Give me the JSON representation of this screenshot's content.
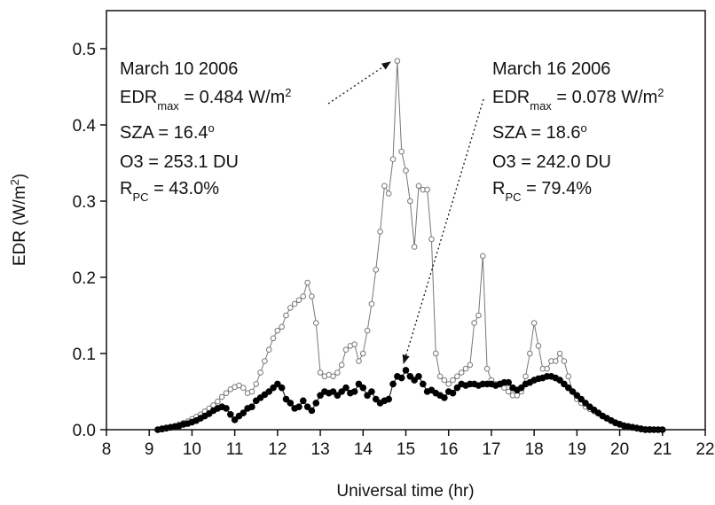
{
  "chart_data": {
    "type": "line",
    "xlabel": "Universal time (hr)",
    "ylabel": [
      {
        "text": "EDR (W/m"
      },
      {
        "text": "2",
        "shift": "sup"
      },
      {
        "text": ")"
      }
    ],
    "xlim": [
      8,
      22
    ],
    "ylim": [
      0,
      0.55
    ],
    "xticks": [
      8,
      9,
      10,
      11,
      12,
      13,
      14,
      15,
      16,
      17,
      18,
      19,
      20,
      21,
      22
    ],
    "yticks": [
      {
        "value": 0,
        "label": "0.0"
      },
      0.1,
      0.2,
      0.3,
      0.4,
      0.5
    ],
    "x": [
      9.2,
      9.3,
      9.4,
      9.5,
      9.6,
      9.7,
      9.8,
      9.9,
      10.0,
      10.1,
      10.2,
      10.3,
      10.4,
      10.5,
      10.6,
      10.7,
      10.8,
      10.9,
      11.0,
      11.1,
      11.2,
      11.3,
      11.4,
      11.5,
      11.6,
      11.7,
      11.8,
      11.9,
      12.0,
      12.1,
      12.2,
      12.3,
      12.4,
      12.5,
      12.6,
      12.7,
      12.8,
      12.9,
      13.0,
      13.1,
      13.2,
      13.3,
      13.4,
      13.5,
      13.6,
      13.7,
      13.8,
      13.9,
      14.0,
      14.1,
      14.2,
      14.3,
      14.4,
      14.5,
      14.6,
      14.7,
      14.8,
      14.9,
      15.0,
      15.1,
      15.2,
      15.3,
      15.4,
      15.5,
      15.6,
      15.7,
      15.8,
      15.9,
      16.0,
      16.1,
      16.2,
      16.3,
      16.4,
      16.5,
      16.6,
      16.7,
      16.8,
      16.9,
      17.0,
      17.1,
      17.2,
      17.3,
      17.4,
      17.5,
      17.6,
      17.7,
      17.8,
      17.9,
      18.0,
      18.1,
      18.2,
      18.3,
      18.4,
      18.5,
      18.6,
      18.7,
      18.8,
      18.9,
      19.0,
      19.1,
      19.2,
      19.3,
      19.4,
      19.5,
      19.6,
      19.7,
      19.8,
      19.9,
      20.0,
      20.1,
      20.2,
      20.3,
      20.4,
      20.5,
      20.6,
      20.7,
      20.8,
      20.9,
      21.0
    ],
    "series": [
      {
        "marker": "open",
        "color": "#777777",
        "values": [
          0,
          0.002,
          0.003,
          0.004,
          0.005,
          0.007,
          0.009,
          0.011,
          0.014,
          0.017,
          0.02,
          0.024,
          0.028,
          0.032,
          0.037,
          0.043,
          0.048,
          0.053,
          0.056,
          0.058,
          0.055,
          0.048,
          0.05,
          0.06,
          0.075,
          0.09,
          0.105,
          0.12,
          0.13,
          0.135,
          0.15,
          0.16,
          0.165,
          0.17,
          0.175,
          0.193,
          0.175,
          0.14,
          0.075,
          0.07,
          0.072,
          0.07,
          0.075,
          0.085,
          0.105,
          0.11,
          0.112,
          0.09,
          0.1,
          0.13,
          0.165,
          0.21,
          0.26,
          0.32,
          0.31,
          0.355,
          0.484,
          0.365,
          0.34,
          0.3,
          0.24,
          0.32,
          0.315,
          0.315,
          0.25,
          0.1,
          0.07,
          0.065,
          0.06,
          0.065,
          0.07,
          0.075,
          0.08,
          0.085,
          0.14,
          0.15,
          0.228,
          0.08,
          0.065,
          0.06,
          0.06,
          0.055,
          0.05,
          0.045,
          0.045,
          0.05,
          0.07,
          0.1,
          0.14,
          0.11,
          0.08,
          0.08,
          0.09,
          0.09,
          0.1,
          0.09,
          0.07,
          0.05,
          0.04,
          0.035,
          0.03,
          0.027,
          0.024,
          0.021,
          0.018,
          0.015,
          0.012,
          0.01,
          0.008,
          0.006,
          0.005,
          0.004,
          0.003,
          0.002,
          0.001,
          0.001,
          0,
          0,
          0
        ]
      },
      {
        "marker": "filled",
        "color": "#000000",
        "values": [
          0,
          0.001,
          0.002,
          0.003,
          0.004,
          0.005,
          0.007,
          0.008,
          0.01,
          0.012,
          0.015,
          0.018,
          0.021,
          0.025,
          0.028,
          0.03,
          0.028,
          0.02,
          0.013,
          0.018,
          0.022,
          0.028,
          0.03,
          0.038,
          0.042,
          0.046,
          0.05,
          0.055,
          0.06,
          0.055,
          0.04,
          0.035,
          0.028,
          0.03,
          0.038,
          0.03,
          0.025,
          0.035,
          0.045,
          0.05,
          0.048,
          0.05,
          0.045,
          0.05,
          0.055,
          0.048,
          0.05,
          0.06,
          0.055,
          0.045,
          0.05,
          0.04,
          0.035,
          0.038,
          0.04,
          0.06,
          0.07,
          0.068,
          0.078,
          0.07,
          0.065,
          0.07,
          0.06,
          0.05,
          0.052,
          0.048,
          0.045,
          0.042,
          0.05,
          0.048,
          0.055,
          0.06,
          0.058,
          0.06,
          0.06,
          0.058,
          0.06,
          0.06,
          0.06,
          0.058,
          0.06,
          0.062,
          0.062,
          0.055,
          0.052,
          0.055,
          0.06,
          0.062,
          0.065,
          0.067,
          0.068,
          0.07,
          0.07,
          0.068,
          0.065,
          0.06,
          0.055,
          0.05,
          0.045,
          0.04,
          0.035,
          0.03,
          0.026,
          0.022,
          0.018,
          0.015,
          0.012,
          0.009,
          0.007,
          0.005,
          0.004,
          0.003,
          0.002,
          0.001,
          0,
          0,
          0,
          0,
          0
        ]
      }
    ],
    "annotations": [
      {
        "lines": [
          [
            {
              "text": "March 10 2006"
            }
          ],
          [
            {
              "text": "EDR"
            },
            {
              "text": "max",
              "shift": "sub"
            },
            {
              "text": " = 0.484 W/m"
            },
            {
              "text": "2",
              "shift": "sup"
            }
          ],
          [
            {
              "text": "SZA = 16.4"
            },
            {
              "text": "o",
              "shift": "sup"
            }
          ],
          [
            {
              "text": "O3 = 253.1 DU"
            }
          ],
          [
            {
              "text": "R"
            },
            {
              "text": "PC",
              "shift": "sub"
            },
            {
              "text": " = 43.0%"
            }
          ]
        ]
      },
      {
        "lines": [
          [
            {
              "text": "March 16 2006"
            }
          ],
          [
            {
              "text": "EDR"
            },
            {
              "text": "max",
              "shift": "sub"
            },
            {
              "text": " = 0.078 W/m"
            },
            {
              "text": "2",
              "shift": "sup"
            }
          ],
          [
            {
              "text": "SZA = 18.6"
            },
            {
              "text": "o",
              "shift": "sup"
            }
          ],
          [
            {
              "text": "O3 = 242.0 DU"
            }
          ],
          [
            {
              "text": "R"
            },
            {
              "text": "PC",
              "shift": "sub"
            },
            {
              "text": " = 79.4%"
            }
          ]
        ]
      }
    ]
  }
}
